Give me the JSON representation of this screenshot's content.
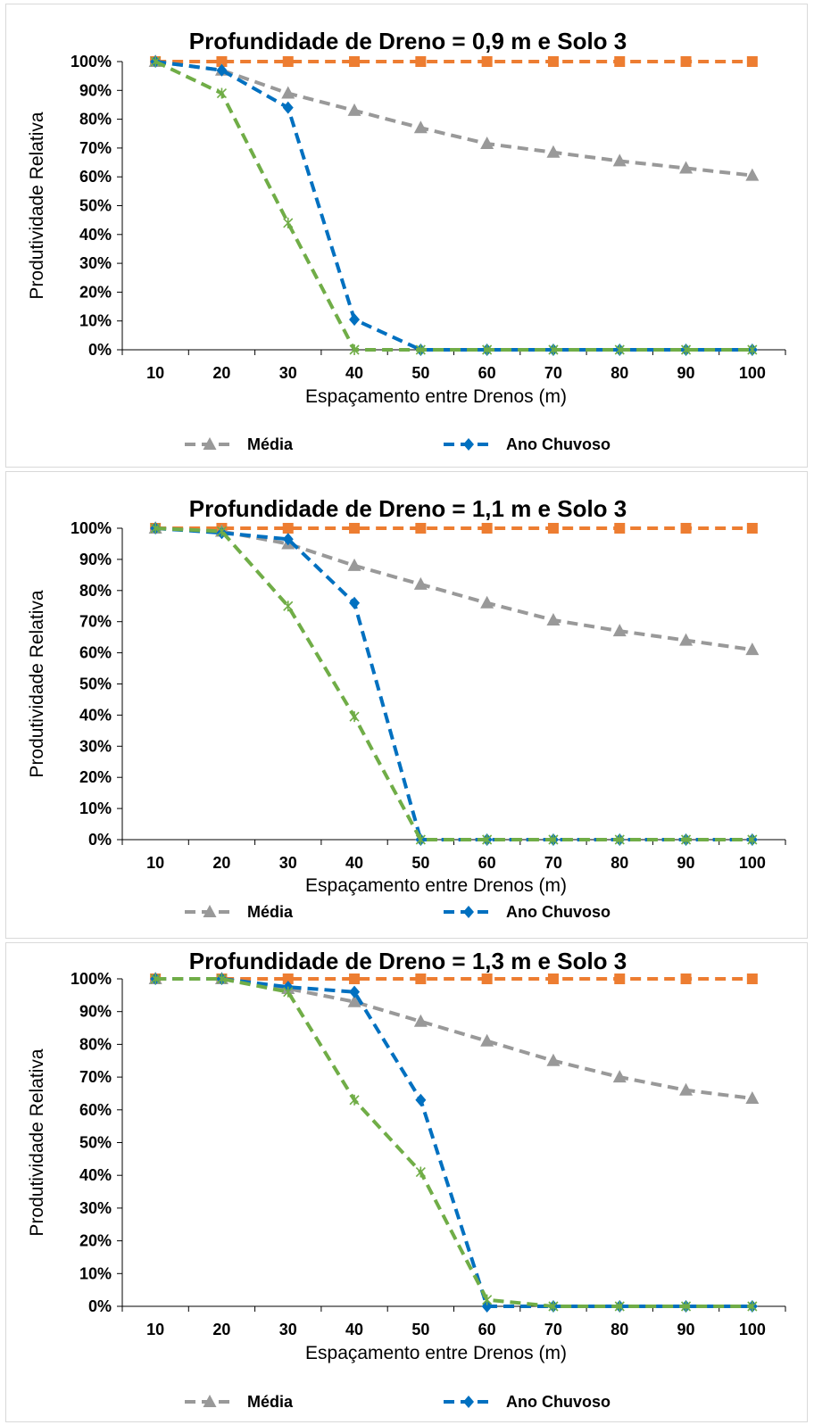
{
  "chart_data": [
    {
      "type": "line",
      "title": "Profundidade de Dreno = 0,9 m e Solo 3",
      "xlabel": "Espaçamento entre Drenos (m)",
      "ylabel": "Produtividade Relativa",
      "x": [
        10,
        20,
        30,
        40,
        50,
        60,
        70,
        80,
        90,
        100
      ],
      "x_tick_labels": [
        "10",
        "20",
        "30",
        "40",
        "50",
        "60",
        "70",
        "80",
        "90",
        "100"
      ],
      "y_tick_labels": [
        "0%",
        "10%",
        "20%",
        "30%",
        "40%",
        "50%",
        "60%",
        "70%",
        "80%",
        "90%",
        "100%"
      ],
      "ylim": [
        0,
        100
      ],
      "grid": false,
      "legend_position": "bottom",
      "series": [
        {
          "name": "",
          "color": "#ed7d31",
          "marker": "square",
          "values": [
            100,
            100,
            100,
            100,
            100,
            100,
            100,
            100,
            100,
            100
          ]
        },
        {
          "name": "Média",
          "color": "#999999",
          "marker": "triangle",
          "values": [
            100,
            97,
            89,
            83,
            77,
            71.5,
            68.5,
            65.5,
            63,
            60.5
          ]
        },
        {
          "name": "Ano Chuvoso",
          "color": "#0070c0",
          "marker": "diamond",
          "values": [
            100,
            97,
            84,
            10.5,
            0,
            0,
            0,
            0,
            0,
            0
          ]
        },
        {
          "name": "",
          "color": "#70ad47",
          "marker": "star",
          "values": [
            100,
            89,
            44,
            0,
            0,
            0,
            0,
            0,
            0,
            0
          ]
        }
      ]
    },
    {
      "type": "line",
      "title": "Profundidade de Dreno = 1,1 m e Solo 3",
      "xlabel": "Espaçamento entre Drenos (m)",
      "ylabel": "Produtividade Relativa",
      "x": [
        10,
        20,
        30,
        40,
        50,
        60,
        70,
        80,
        90,
        100
      ],
      "x_tick_labels": [
        "10",
        "20",
        "30",
        "40",
        "50",
        "60",
        "70",
        "80",
        "90",
        "100"
      ],
      "y_tick_labels": [
        "0%",
        "10%",
        "20%",
        "30%",
        "40%",
        "50%",
        "60%",
        "70%",
        "80%",
        "90%",
        "100%"
      ],
      "ylim": [
        0,
        100
      ],
      "grid": false,
      "legend_position": "bottom",
      "series": [
        {
          "name": "",
          "color": "#ed7d31",
          "marker": "square",
          "values": [
            100,
            100,
            100,
            100,
            100,
            100,
            100,
            100,
            100,
            100
          ]
        },
        {
          "name": "Média",
          "color": "#999999",
          "marker": "triangle",
          "values": [
            100,
            99,
            95,
            88,
            82,
            76,
            70.5,
            67,
            64,
            61
          ]
        },
        {
          "name": "Ano Chuvoso",
          "color": "#0070c0",
          "marker": "diamond",
          "values": [
            100,
            98.5,
            96.5,
            76,
            0,
            0,
            0,
            0,
            0,
            0
          ]
        },
        {
          "name": "",
          "color": "#70ad47",
          "marker": "star",
          "values": [
            100,
            99,
            75,
            39.5,
            0,
            0,
            0,
            0,
            0,
            0
          ]
        }
      ]
    },
    {
      "type": "line",
      "title": "Profundidade de Dreno = 1,3 m e Solo 3",
      "xlabel": "Espaçamento entre Drenos (m)",
      "ylabel": "Produtividade Relativa",
      "x": [
        10,
        20,
        30,
        40,
        50,
        60,
        70,
        80,
        90,
        100
      ],
      "x_tick_labels": [
        "10",
        "20",
        "30",
        "40",
        "50",
        "60",
        "70",
        "80",
        "90",
        "100"
      ],
      "y_tick_labels": [
        "0%",
        "10%",
        "20%",
        "30%",
        "40%",
        "50%",
        "60%",
        "70%",
        "80%",
        "90%",
        "100%"
      ],
      "ylim": [
        0,
        100
      ],
      "grid": false,
      "legend_position": "bottom",
      "series": [
        {
          "name": "",
          "color": "#ed7d31",
          "marker": "square",
          "values": [
            100,
            100,
            100,
            100,
            100,
            100,
            100,
            100,
            100,
            100
          ]
        },
        {
          "name": "Média",
          "color": "#999999",
          "marker": "triangle",
          "values": [
            100,
            100,
            97,
            93,
            87,
            81,
            75,
            70,
            66,
            63.5
          ]
        },
        {
          "name": "Ano Chuvoso",
          "color": "#0070c0",
          "marker": "diamond",
          "values": [
            100,
            100,
            97.5,
            96,
            63,
            0,
            0,
            0,
            0,
            0
          ]
        },
        {
          "name": "",
          "color": "#70ad47",
          "marker": "star",
          "values": [
            100,
            100,
            96,
            63,
            41,
            2,
            0,
            0,
            0,
            0
          ]
        }
      ]
    }
  ]
}
